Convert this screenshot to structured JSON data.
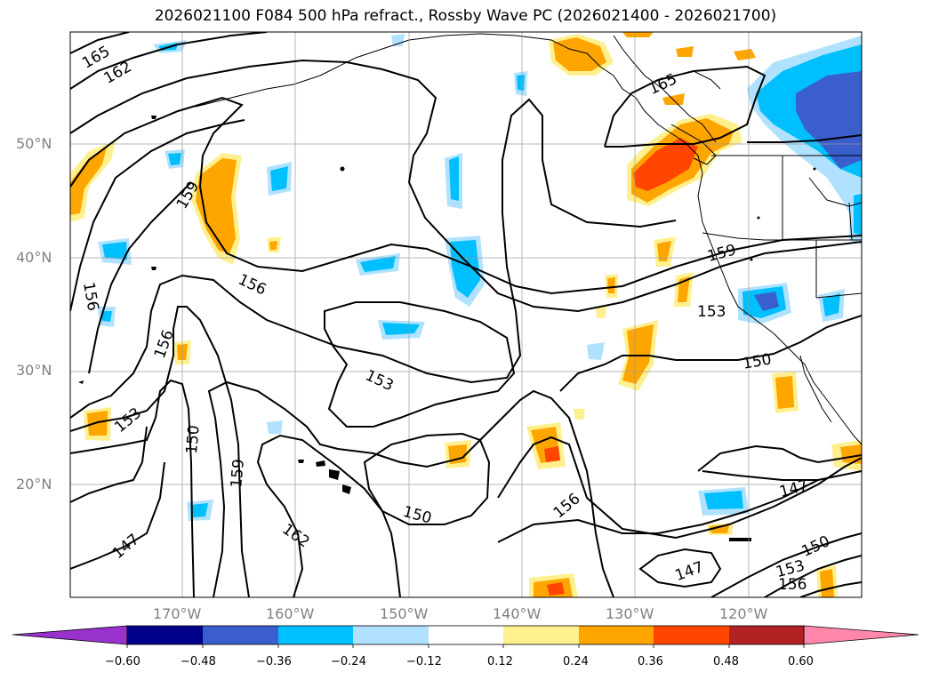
{
  "title": "2026021100 F084 500 hPa refract., Rossby Wave PC (2026021400 - 2026021700)",
  "lat_labels": [
    "50°N",
    "40°N",
    "30°N",
    "20°N"
  ],
  "lon_labels": [
    "170°W",
    "160°W",
    "150°W",
    "140°W",
    "130°W",
    "120°W"
  ],
  "contour_labels": [
    "165",
    "162",
    "165",
    "159",
    "156",
    "156",
    "156",
    "153",
    "150",
    "159",
    "147",
    "162",
    "153",
    "150",
    "159",
    "153",
    "150",
    "156",
    "147",
    "150",
    "147",
    "153",
    "156"
  ],
  "colorbar": {
    "ticks": [
      "−0.60",
      "−0.48",
      "−0.36",
      "−0.24",
      "−0.12",
      "0.12",
      "0.24",
      "0.36",
      "0.48",
      "0.60"
    ],
    "colors": {
      "under": "#9932cc",
      "bins": [
        "#00008b",
        "#3a5fcd",
        "#00bfff",
        "#b0e2ff",
        "#ffffff",
        "#fff08f",
        "#ffa500",
        "#ff4500",
        "#b22222"
      ],
      "over": "#ff88aa"
    }
  },
  "colors": {
    "positive_light": "#fff08f",
    "positive_mid": "#ffa500",
    "positive_strong": "#ff4500",
    "negative_light": "#b0e2ff",
    "negative_mid": "#00bfff",
    "negative_strong": "#3a5fcd"
  }
}
